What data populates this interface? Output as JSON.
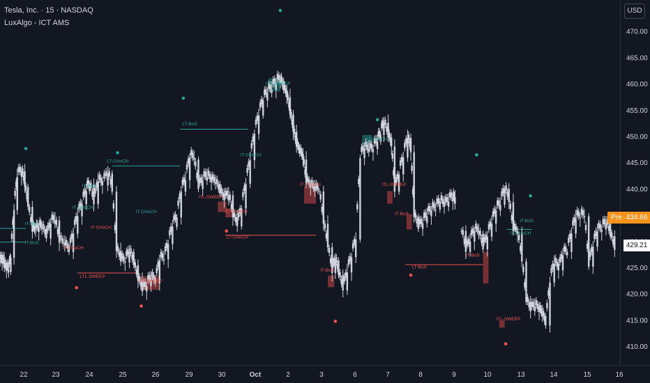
{
  "header": {
    "title": "Tesla, Inc. · 15 · NASDAQ",
    "indicator": "LuxAlgo - ICT AMS"
  },
  "currency_button": "USD",
  "price_badges": {
    "pre_label": "Pre",
    "pre_value": "434.66",
    "last_value": "429.21"
  },
  "colors": {
    "background": "#131722",
    "bull": "#26a69a",
    "bear": "#ef5350",
    "candle": "#d1d4dc",
    "axis_text": "#d1d4dc",
    "pre_badge": "#f7931a"
  },
  "chart_data": {
    "type": "candlestick",
    "x_tick_labels": [
      "22",
      "23",
      "24",
      "25",
      "26",
      "29",
      "30",
      "Oct",
      "2",
      "3",
      "6",
      "7",
      "8",
      "9",
      "10",
      "13",
      "14",
      "15",
      "16"
    ],
    "y_ticks": [
      410,
      415,
      420,
      425,
      430,
      435,
      440,
      445,
      450,
      455,
      460,
      465,
      470
    ],
    "ylim": [
      406.5,
      476
    ],
    "close_series": [
      [
        0,
        425.8
      ],
      [
        0.2,
        426.4
      ],
      [
        0.4,
        425.0
      ],
      [
        0.6,
        424.6
      ],
      [
        0.8,
        424.2
      ],
      [
        1,
        426.9
      ],
      [
        1.3,
        436.0
      ],
      [
        1.6,
        442.3
      ],
      [
        2,
        443.4
      ],
      [
        2.3,
        440.4
      ],
      [
        2.6,
        436.6
      ],
      [
        3,
        431.9
      ],
      [
        3.3,
        431.8
      ],
      [
        3.6,
        432.6
      ],
      [
        3.9,
        432.4
      ],
      [
        4.3,
        430.6
      ],
      [
        4.7,
        433.4
      ],
      [
        5.1,
        434.0
      ],
      [
        5.5,
        429.8
      ],
      [
        6,
        429.2
      ],
      [
        6.4,
        428.0
      ],
      [
        6.8,
        431.5
      ],
      [
        7.2,
        434.8
      ],
      [
        7.6,
        437.1
      ],
      [
        8,
        439.6
      ],
      [
        8.3,
        440.9
      ],
      [
        8.7,
        437.1
      ],
      [
        9.1,
        441.5
      ],
      [
        9.5,
        440.7
      ],
      [
        10,
        443.0
      ],
      [
        10.4,
        439.5
      ],
      [
        10.8,
        428.2
      ],
      [
        11.2,
        426.2
      ],
      [
        11.6,
        426.0
      ],
      [
        12,
        428.0
      ],
      [
        12.4,
        425.5
      ],
      [
        12.8,
        422.5
      ],
      [
        13.2,
        420.5
      ],
      [
        13.6,
        421.5
      ],
      [
        14,
        423.0
      ],
      [
        14.4,
        422.0
      ],
      [
        14.8,
        426.4
      ],
      [
        15.2,
        426.6
      ],
      [
        15.6,
        429.5
      ],
      [
        16,
        432.8
      ],
      [
        16.4,
        434.6
      ],
      [
        16.8,
        439.5
      ],
      [
        17.2,
        441.7
      ],
      [
        17.6,
        446.0
      ],
      [
        18,
        445.6
      ],
      [
        18.4,
        440.0
      ],
      [
        18.8,
        441.6
      ],
      [
        19.2,
        442.3
      ],
      [
        19.6,
        441.3
      ],
      [
        20,
        441.0
      ],
      [
        20.4,
        439.1
      ],
      [
        20.8,
        437.8
      ],
      [
        21.2,
        438.8
      ],
      [
        21.6,
        434.6
      ],
      [
        22,
        432.9
      ],
      [
        22.4,
        436.3
      ],
      [
        22.8,
        441.0
      ],
      [
        23.2,
        445.5
      ],
      [
        23.6,
        450.5
      ],
      [
        24,
        454.0
      ],
      [
        24.4,
        456.9
      ],
      [
        24.8,
        458.3
      ],
      [
        25.2,
        458.9
      ],
      [
        25.6,
        460.3
      ],
      [
        26,
        460.6
      ],
      [
        26.3,
        458.8
      ],
      [
        26.6,
        457.5
      ],
      [
        26.9,
        454.2
      ],
      [
        27.2,
        450.9
      ],
      [
        27.5,
        448.0
      ],
      [
        27.8,
        446.7
      ],
      [
        28.1,
        445.6
      ],
      [
        28.4,
        441.0
      ],
      [
        28.8,
        440.4
      ],
      [
        29.2,
        439.6
      ],
      [
        29.6,
        439.5
      ],
      [
        30,
        433.4
      ],
      [
        30.4,
        428.9
      ],
      [
        30.8,
        424.0
      ],
      [
        31.1,
        426.4
      ],
      [
        31.4,
        423.6
      ],
      [
        31.8,
        420.7
      ],
      [
        32.2,
        424.1
      ],
      [
        32.6,
        427.0
      ],
      [
        33,
        430.4
      ],
      [
        33.4,
        445.9
      ],
      [
        33.8,
        447.7
      ],
      [
        34.2,
        447.0
      ],
      [
        34.6,
        447.6
      ],
      [
        35,
        449.0
      ],
      [
        35.3,
        450.3
      ],
      [
        35.6,
        452.6
      ],
      [
        36,
        449.8
      ],
      [
        36.3,
        448.1
      ],
      [
        36.6,
        439.5
      ],
      [
        37,
        442.8
      ],
      [
        37.4,
        446.0
      ],
      [
        37.8,
        449.7
      ],
      [
        38.1,
        447.0
      ],
      [
        38.4,
        434.7
      ],
      [
        38.8,
        432.4
      ],
      [
        39.2,
        433.5
      ],
      [
        39.6,
        434.8
      ],
      [
        40,
        435.9
      ],
      [
        40.4,
        436.1
      ],
      [
        40.8,
        437.6
      ],
      [
        41.2,
        436.6
      ],
      [
        41.6,
        437.6
      ],
      [
        42,
        438.4
      ],
      [
        42.2,
        437.2
      ]
    ],
    "close_series_2": [
      [
        42.8,
        432.0
      ],
      [
        43.2,
        428.0
      ],
      [
        43.6,
        430.0
      ],
      [
        44,
        432.0
      ],
      [
        44.4,
        431.5
      ],
      [
        44.8,
        428.5
      ],
      [
        45.2,
        430.9
      ],
      [
        45.6,
        433.4
      ],
      [
        46,
        435.9
      ],
      [
        46.4,
        437.0
      ],
      [
        46.8,
        440.0
      ],
      [
        47.2,
        437.5
      ],
      [
        47.6,
        432.0
      ],
      [
        48,
        431.5
      ],
      [
        48.4,
        426.2
      ],
      [
        48.8,
        418.5
      ],
      [
        49.2,
        416.7
      ],
      [
        49.6,
        417.6
      ],
      [
        50,
        416.6
      ],
      [
        50.3,
        415.8
      ],
      [
        50.6,
        414.0
      ],
      [
        51,
        422.2
      ],
      [
        51.4,
        425.8
      ],
      [
        51.8,
        424.5
      ],
      [
        52.2,
        427.4
      ],
      [
        52.6,
        428.0
      ],
      [
        53,
        431.5
      ],
      [
        53.4,
        434.4
      ],
      [
        53.8,
        434.6
      ],
      [
        54.2,
        434.8
      ],
      [
        54.6,
        425.2
      ],
      [
        55,
        429.0
      ],
      [
        55.4,
        431.8
      ],
      [
        55.8,
        432.3
      ],
      [
        56.2,
        433.5
      ],
      [
        56.6,
        431.0
      ],
      [
        57,
        428.4
      ]
    ],
    "series": [
      {
        "name": "TSLA",
        "ohlc_summary": "close path reconstructed"
      }
    ],
    "sessions": [
      {
        "x": 0,
        "h": 426.6,
        "l": 422.8
      },
      {
        "x": 1.6,
        "h": 444.5,
        "l": 428.5
      }
    ],
    "annotations": [
      {
        "label": "IT-BoS",
        "color": "bull",
        "x": 2.3,
        "y": 433.1
      },
      {
        "label": "IT-BoS",
        "color": "bull",
        "x": 2.3,
        "y": 429.5
      },
      {
        "label": "IT-CHoCH",
        "color": "bear",
        "x": 5.8,
        "y": 428.5
      },
      {
        "label": "IT-CHoCH",
        "color": "bull",
        "x": 6.7,
        "y": 436.2
      },
      {
        "label": "IT-BoS",
        "color": "bull",
        "x": 7.6,
        "y": 440.3
      },
      {
        "label": "LT-CHoCH",
        "color": "bull",
        "x": 9.9,
        "y": 445.0
      },
      {
        "label": "IT-CHoCH",
        "color": "bear",
        "x": 8.4,
        "y": 432.4
      },
      {
        "label": "LTL-SWEEP",
        "color": "bear",
        "x": 7.4,
        "y": 423.1
      },
      {
        "label": "ITL-SWEEP",
        "color": "bear",
        "x": 12.8,
        "y": 422.2
      },
      {
        "label": "IT-CHoCH",
        "color": "bull",
        "x": 12.6,
        "y": 435.4
      },
      {
        "label": "LT-BoS",
        "color": "bull",
        "x": 16.9,
        "y": 452.1
      },
      {
        "label": "ITL-SWEEP",
        "color": "bear",
        "x": 18.4,
        "y": 438.2
      },
      {
        "label": "IT-CHoCH",
        "color": "bear",
        "x": 21.0,
        "y": 435.5
      },
      {
        "label": "LT-CHoCH",
        "color": "bear",
        "x": 21.0,
        "y": 430.6
      },
      {
        "label": "IT-CHoCH",
        "color": "bull",
        "x": 22.3,
        "y": 446.2
      },
      {
        "label": "ITH-SWEEP",
        "color": "bull",
        "x": 24.6,
        "y": 459.8
      },
      {
        "label": "IT-CHoCH",
        "color": "bear",
        "x": 27.8,
        "y": 440.6
      },
      {
        "label": "IT-BoS",
        "color": "bear",
        "x": 29.7,
        "y": 424.3
      },
      {
        "label": "IT-CHoCH",
        "color": "bull",
        "x": 34.0,
        "y": 449.2
      },
      {
        "label": "ITL-SWEEP",
        "color": "bear",
        "x": 35.4,
        "y": 440.6
      },
      {
        "label": "IT-BoS",
        "color": "bear",
        "x": 36.6,
        "y": 435.0
      },
      {
        "label": "LT-BoS",
        "color": "bear",
        "x": 38.2,
        "y": 424.9
      },
      {
        "label": "IT-BoS",
        "color": "bear",
        "x": 43.2,
        "y": 427.1
      },
      {
        "label": "IT-CHoCH",
        "color": "bull",
        "x": 47.3,
        "y": 431.3
      },
      {
        "label": "IT-BoS",
        "color": "bull",
        "x": 48.2,
        "y": 433.7
      },
      {
        "label": "ITL-SWEEP",
        "color": "bear",
        "x": 46.0,
        "y": 415.0
      }
    ],
    "levels": [
      {
        "color": "bull",
        "x1": 0,
        "x2": 2.4,
        "y": 432.5
      },
      {
        "color": "bull",
        "x1": 0,
        "x2": 2.4,
        "y": 429.9
      },
      {
        "color": "bull",
        "x1": 10.4,
        "x2": 16.7,
        "y": 444.4
      },
      {
        "color": "bull",
        "x1": 16.7,
        "x2": 23.0,
        "y": 451.4
      },
      {
        "color": "bear",
        "x1": 7.2,
        "x2": 12.6,
        "y": 424.0
      },
      {
        "color": "bear",
        "x1": 20.9,
        "x2": 29.3,
        "y": 431.2
      },
      {
        "color": "bear",
        "x1": 37.6,
        "x2": 44.8,
        "y": 425.6
      },
      {
        "color": "bull",
        "x1": 47.0,
        "x2": 49.3,
        "y": 432.3
      }
    ],
    "pivots": [
      {
        "color": "bull",
        "x": 2.4,
        "y": 447.7
      },
      {
        "color": "bull",
        "x": 10.9,
        "y": 446.9
      },
      {
        "color": "bull",
        "x": 17.0,
        "y": 457.3
      },
      {
        "color": "bull",
        "x": 26.0,
        "y": 474.0
      },
      {
        "color": "bull",
        "x": 35.0,
        "y": 453.2
      },
      {
        "color": "bull",
        "x": 44.2,
        "y": 446.5
      },
      {
        "color": "bull",
        "x": 49.2,
        "y": 438.7
      },
      {
        "color": "bear",
        "x": 7.1,
        "y": 421.2
      },
      {
        "color": "bear",
        "x": 13.1,
        "y": 417.7
      },
      {
        "color": "bear",
        "x": 21.0,
        "y": 432.0
      },
      {
        "color": "bear",
        "x": 31.1,
        "y": 414.8
      },
      {
        "color": "bear",
        "x": 38.1,
        "y": 423.6
      },
      {
        "color": "bear",
        "x": 46.9,
        "y": 410.5
      }
    ],
    "zones": [
      {
        "color": "bull",
        "x1": 24.9,
        "x2": 26.0,
        "y1": 458.6,
        "y2": 461.1
      },
      {
        "color": "bull",
        "x1": 33.6,
        "x2": 34.5,
        "y1": 448.3,
        "y2": 450.3
      },
      {
        "color": "bear",
        "x1": 13.0,
        "x2": 14.8,
        "y1": 420.8,
        "y2": 423.4
      },
      {
        "color": "bear",
        "x1": 20.2,
        "x2": 21.0,
        "y1": 435.6,
        "y2": 437.6
      },
      {
        "color": "bear",
        "x1": 20.9,
        "x2": 21.6,
        "y1": 434.6,
        "y2": 436.3
      },
      {
        "color": "bear",
        "x1": 28.2,
        "x2": 29.3,
        "y1": 437.2,
        "y2": 440.6
      },
      {
        "color": "bear",
        "x1": 30.4,
        "x2": 31.0,
        "y1": 421.3,
        "y2": 423.5
      },
      {
        "color": "bear",
        "x1": 35.9,
        "x2": 36.4,
        "y1": 437.2,
        "y2": 439.6
      },
      {
        "color": "bear",
        "x1": 37.7,
        "x2": 38.2,
        "y1": 432.3,
        "y2": 435.2
      },
      {
        "color": "bear",
        "x1": 44.8,
        "x2": 45.3,
        "y1": 422.0,
        "y2": 428.0
      },
      {
        "color": "bear",
        "x1": 46.3,
        "x2": 46.8,
        "y1": 413.6,
        "y2": 415.0
      }
    ]
  }
}
